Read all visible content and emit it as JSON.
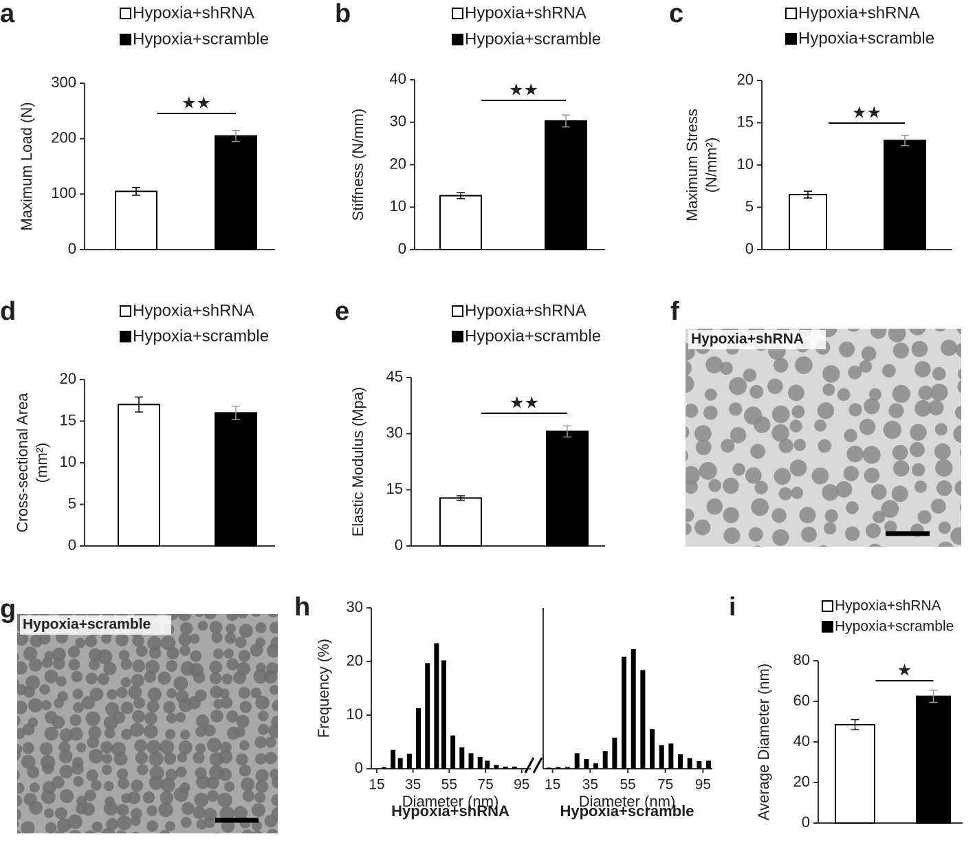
{
  "chart_data": [
    {
      "type": "bar",
      "panel": "a",
      "ylabel": [
        "Maximum Load (N)"
      ],
      "ylim": [
        0,
        300
      ],
      "yticks": [
        0,
        100,
        200,
        300
      ],
      "annotation": "★★",
      "series": [
        {
          "name": "Hypoxia+shRNA",
          "color": "#ffffff",
          "values": [
            105
          ],
          "errors": [
            7
          ]
        },
        {
          "name": "Hypoxia+scramble",
          "color": "#000000",
          "values": [
            205
          ],
          "errors": [
            10
          ]
        }
      ]
    },
    {
      "type": "bar",
      "panel": "b",
      "ylabel": [
        "Stiffness (N/mm)"
      ],
      "ylim": [
        0,
        40
      ],
      "yticks": [
        0,
        10,
        20,
        30,
        40
      ],
      "annotation": "★★",
      "series": [
        {
          "name": "Hypoxia+shRNA",
          "color": "#ffffff",
          "values": [
            12.7
          ],
          "errors": [
            0.7
          ]
        },
        {
          "name": "Hypoxia+scramble",
          "color": "#000000",
          "values": [
            30.3
          ],
          "errors": [
            1.4
          ]
        }
      ]
    },
    {
      "type": "bar",
      "panel": "c",
      "ylabel": [
        "Maximum  Stress",
        "(N/mm²)"
      ],
      "ylim": [
        0,
        20
      ],
      "yticks": [
        0,
        5,
        10,
        15,
        20
      ],
      "annotation": "★★",
      "series": [
        {
          "name": "Hypoxia+shRNA",
          "color": "#ffffff",
          "values": [
            6.5
          ],
          "errors": [
            0.4
          ]
        },
        {
          "name": "Hypoxia+scramble",
          "color": "#000000",
          "values": [
            12.9
          ],
          "errors": [
            0.6
          ]
        }
      ]
    },
    {
      "type": "bar",
      "panel": "d",
      "ylabel": [
        "Cross-sectional Area",
        "(mm²)"
      ],
      "ylim": [
        0,
        20
      ],
      "yticks": [
        0,
        5,
        10,
        15,
        20
      ],
      "series": [
        {
          "name": "Hypoxia+shRNA",
          "color": "#ffffff",
          "values": [
            17
          ],
          "errors": [
            0.9
          ]
        },
        {
          "name": "Hypoxia+scramble",
          "color": "#000000",
          "values": [
            16
          ],
          "errors": [
            0.8
          ]
        }
      ]
    },
    {
      "type": "bar",
      "panel": "e",
      "ylabel": [
        "Elastic Modulus (Mpa)"
      ],
      "ylim": [
        0,
        45
      ],
      "yticks": [
        0,
        15,
        30,
        45
      ],
      "annotation": "★★",
      "series": [
        {
          "name": "Hypoxia+shRNA",
          "color": "#ffffff",
          "values": [
            12.8
          ],
          "errors": [
            0.6
          ]
        },
        {
          "name": "Hypoxia+scramble",
          "color": "#000000",
          "values": [
            30.6
          ],
          "errors": [
            1.5
          ]
        }
      ]
    },
    {
      "type": "bar",
      "panel": "h",
      "ylabel": [
        "Frequency  (%)"
      ],
      "xlabel": "Diameter (nm)",
      "subtitle": "Hypoxia+shRNA",
      "color": "#000000",
      "xlim": [
        12,
        100
      ],
      "xticks": [
        15,
        35,
        55,
        75,
        95
      ],
      "ylim": [
        0,
        30
      ],
      "yticks": [
        0,
        10,
        20,
        30
      ],
      "x": [
        19,
        24,
        28,
        33,
        38,
        43,
        48,
        52,
        57,
        62,
        67,
        72,
        76,
        81,
        86,
        91
      ],
      "values": [
        0.3,
        3.5,
        2.0,
        2.8,
        11.3,
        19.7,
        23.4,
        20.2,
        6.2,
        4.0,
        2.9,
        2.2,
        1.5,
        0.7,
        0.4,
        0.4
      ]
    },
    {
      "type": "bar",
      "xlabel": "Diameter (nm)",
      "subtitle": "Hypoxia+scramble",
      "color": "#000000",
      "xlim": [
        10,
        100
      ],
      "xticks": [
        15,
        35,
        55,
        75,
        95
      ],
      "ylim": [
        0,
        30
      ],
      "x": [
        13,
        18,
        23,
        28,
        33,
        38,
        43,
        48,
        53,
        58,
        63,
        68,
        73,
        78,
        83,
        88,
        93,
        98
      ],
      "values": [
        0.2,
        0.3,
        0.3,
        2.9,
        1.8,
        1.0,
        3.3,
        5.8,
        20.9,
        22.3,
        18.4,
        7.4,
        4.4,
        4.7,
        2.7,
        2.0,
        1.4,
        1.5
      ]
    },
    {
      "type": "bar",
      "panel": "i",
      "ylabel": [
        "Average Diameter (nm)"
      ],
      "ylim": [
        0,
        80
      ],
      "yticks": [
        0,
        20,
        40,
        60,
        80
      ],
      "annotation": "★",
      "series": [
        {
          "name": "Hypoxia+shRNA",
          "color": "#ffffff",
          "values": [
            48.5
          ],
          "errors": [
            2.5
          ]
        },
        {
          "name": "Hypoxia+scramble",
          "color": "#000000",
          "values": [
            62.5
          ],
          "errors": [
            3
          ]
        }
      ]
    }
  ],
  "images": [
    {
      "panel": "f",
      "label": "Hypoxia+shRNA"
    },
    {
      "panel": "g",
      "label": "Hypoxia+scramble"
    }
  ]
}
